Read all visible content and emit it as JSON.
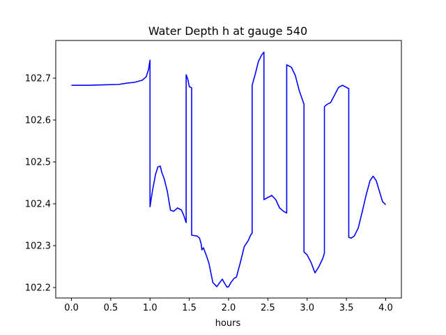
{
  "chart_data": {
    "type": "line",
    "title": "Water Depth h at gauge 540",
    "xlabel": "hours",
    "ylabel": "",
    "xlim": [
      -0.2,
      4.2
    ],
    "ylim": [
      102.175,
      102.79
    ],
    "xticks": [
      0.0,
      0.5,
      1.0,
      1.5,
      2.0,
      2.5,
      3.0,
      3.5,
      4.0
    ],
    "xtick_labels": [
      "0.0",
      "0.5",
      "1.0",
      "1.5",
      "2.0",
      "2.5",
      "3.0",
      "3.5",
      "4.0"
    ],
    "yticks": [
      102.2,
      102.3,
      102.4,
      102.5,
      102.6,
      102.7
    ],
    "ytick_labels": [
      "102.2",
      "102.3",
      "102.4",
      "102.5",
      "102.6",
      "102.7"
    ],
    "grid": false,
    "series": [
      {
        "color": "#0000ff",
        "x": [
          0.0,
          0.2,
          0.4,
          0.6,
          0.7,
          0.8,
          0.9,
          0.95,
          0.98,
          1.0,
          1.0,
          1.03,
          1.07,
          1.1,
          1.13,
          1.15,
          1.18,
          1.22,
          1.26,
          1.3,
          1.35,
          1.4,
          1.43,
          1.46,
          1.46,
          1.48,
          1.5,
          1.53,
          1.53,
          1.6,
          1.63,
          1.65,
          1.66,
          1.68,
          1.72,
          1.75,
          1.8,
          1.85,
          1.88,
          1.92,
          1.95,
          1.98,
          2.0,
          2.03,
          2.07,
          2.1,
          2.15,
          2.2,
          2.25,
          2.28,
          2.3,
          2.3,
          2.34,
          2.38,
          2.42,
          2.45,
          2.45,
          2.5,
          2.55,
          2.6,
          2.65,
          2.7,
          2.74,
          2.74,
          2.8,
          2.85,
          2.9,
          2.95,
          2.96,
          2.96,
          3.0,
          3.05,
          3.1,
          3.15,
          3.2,
          3.22,
          3.22,
          3.25,
          3.3,
          3.35,
          3.4,
          3.45,
          3.5,
          3.53,
          3.53,
          3.56,
          3.6,
          3.65,
          3.7,
          3.75,
          3.8,
          3.84,
          3.88,
          3.92,
          3.96,
          4.0
        ],
        "y": [
          102.683,
          102.683,
          102.684,
          102.685,
          102.688,
          102.69,
          102.695,
          102.703,
          102.72,
          102.743,
          102.393,
          102.43,
          102.47,
          102.488,
          102.49,
          102.475,
          102.46,
          102.43,
          102.385,
          102.382,
          102.39,
          102.385,
          102.372,
          102.355,
          102.708,
          102.698,
          102.68,
          102.677,
          102.325,
          102.323,
          102.318,
          102.305,
          102.29,
          102.295,
          102.275,
          102.258,
          102.212,
          102.202,
          102.21,
          102.22,
          102.21,
          102.201,
          102.202,
          102.212,
          102.222,
          102.225,
          102.26,
          102.298,
          102.312,
          102.325,
          102.33,
          102.683,
          102.71,
          102.74,
          102.755,
          102.762,
          102.41,
          102.415,
          102.42,
          102.41,
          102.39,
          102.382,
          102.378,
          102.732,
          102.726,
          102.706,
          102.67,
          102.643,
          102.638,
          102.285,
          102.278,
          102.26,
          102.235,
          102.25,
          102.27,
          102.282,
          102.632,
          102.637,
          102.642,
          102.66,
          102.678,
          102.683,
          102.678,
          102.675,
          102.32,
          102.318,
          102.323,
          102.342,
          102.38,
          102.42,
          102.455,
          102.466,
          102.455,
          102.43,
          102.405,
          102.398
        ]
      }
    ]
  }
}
